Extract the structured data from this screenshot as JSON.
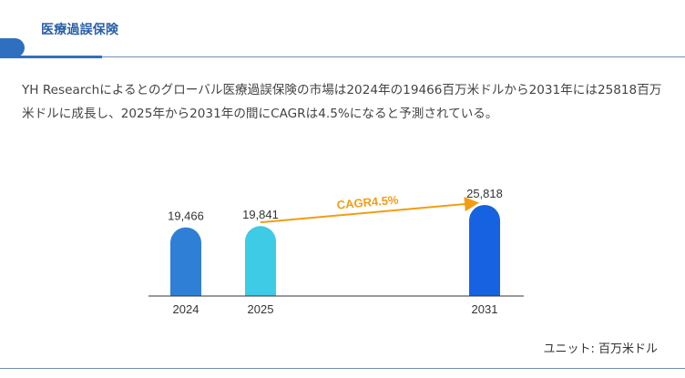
{
  "header": {
    "title": "医療過誤保険"
  },
  "description": "YH Researchによるとのグローバル医療過誤保険の市場は2024年の19466百万米ドルから2031年には25818百万米ドルに成長し、2025年から2031年の間にCAGRは4.5%になると予測されている。",
  "chart_data": {
    "type": "bar",
    "categories": [
      "2024",
      "2025",
      "2031"
    ],
    "values": [
      19466,
      19841,
      25818
    ],
    "value_labels": [
      "19,466",
      "19,841",
      "25,818"
    ],
    "bar_colors": [
      "#2f7fd6",
      "#3ecbe6",
      "#1762e0"
    ],
    "annotation": {
      "text": "CAGR4.5%",
      "color": "#f39c12",
      "from": "2025",
      "to": "2031"
    },
    "ylim": [
      0,
      30000
    ]
  },
  "unit_note": "ユニット: 百万米ドル"
}
